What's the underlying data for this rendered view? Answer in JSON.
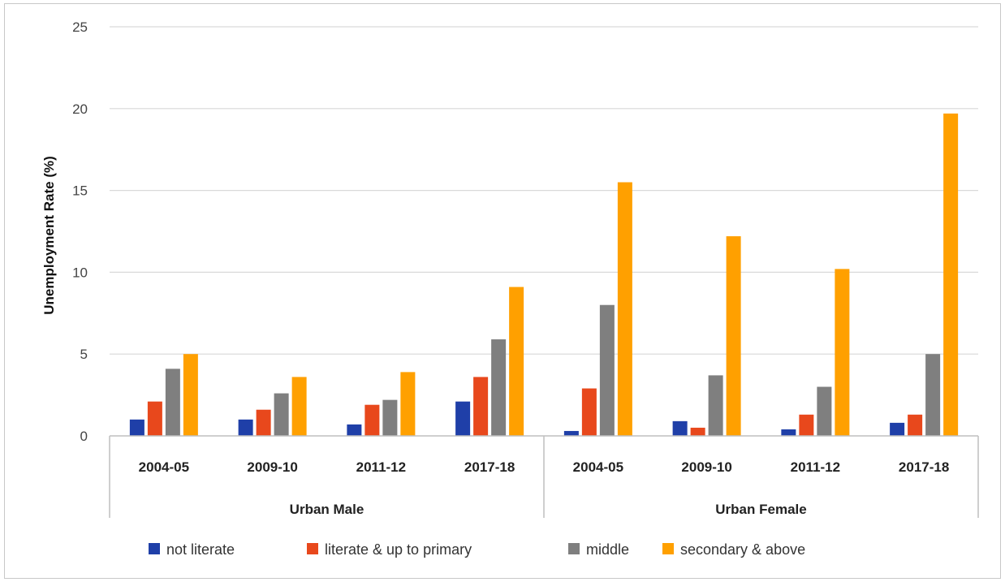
{
  "chart_data": {
    "type": "bar",
    "ylabel": "Unemployment Rate (%)",
    "xlabel": "",
    "ylim": [
      0,
      25
    ],
    "yticks": [
      0,
      5,
      10,
      15,
      20,
      25
    ],
    "grid": true,
    "legend_position": "bottom",
    "groups": [
      {
        "label": "Urban Male",
        "categories": [
          "2004-05",
          "2009-10",
          "2011-12",
          "2017-18"
        ]
      },
      {
        "label": "Urban Female",
        "categories": [
          "2004-05",
          "2009-10",
          "2011-12",
          "2017-18"
        ]
      }
    ],
    "series": [
      {
        "name": "not  literate",
        "color": "#1f3fa8",
        "values": [
          1.0,
          1.0,
          0.7,
          2.1,
          0.3,
          0.9,
          0.4,
          0.8
        ]
      },
      {
        "name": "literate & up to primary",
        "color": "#e8481c",
        "values": [
          2.1,
          1.6,
          1.9,
          3.6,
          2.9,
          0.5,
          1.3,
          1.3
        ]
      },
      {
        "name": "middle",
        "color": "#7f7f7f",
        "values": [
          4.1,
          2.6,
          2.2,
          5.9,
          8.0,
          3.7,
          3.0,
          5.0
        ]
      },
      {
        "name": "secondary & above",
        "color": "#ffa000",
        "values": [
          5.0,
          3.6,
          3.9,
          9.1,
          15.5,
          12.2,
          10.2,
          19.7
        ]
      }
    ]
  }
}
